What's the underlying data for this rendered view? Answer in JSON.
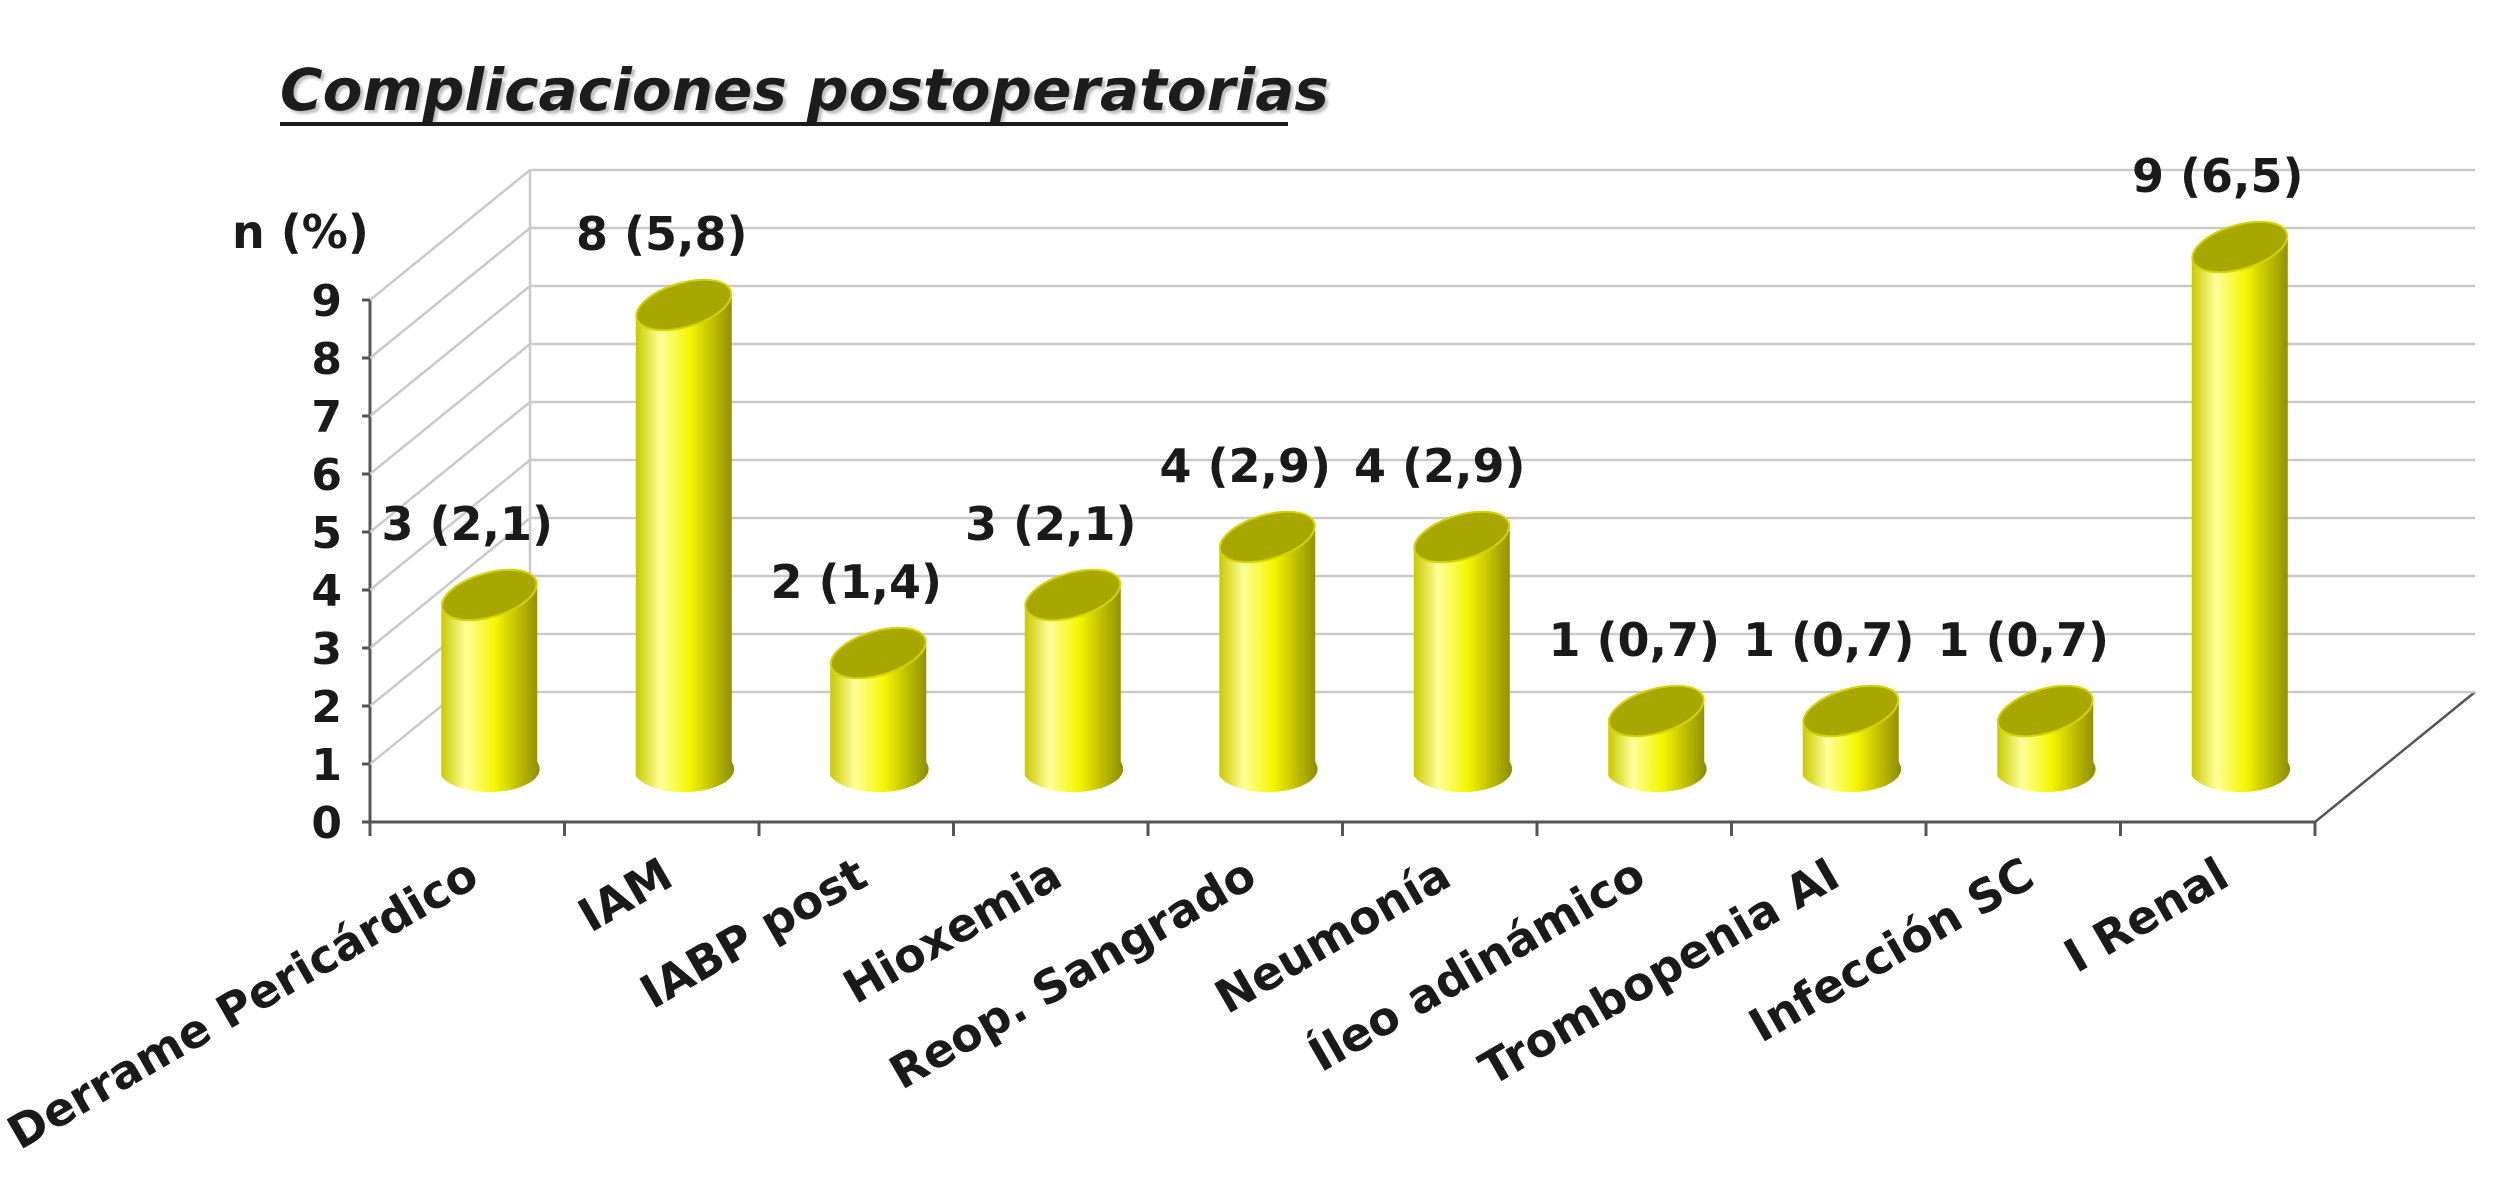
{
  "chart_data": {
    "type": "bar",
    "title": "Complicaciones postoperatorias",
    "ylabel": "n (%)",
    "xlabel": "",
    "ylim": [
      0,
      9
    ],
    "yticks": [
      "0",
      "1",
      "2",
      "3",
      "4",
      "5",
      "6",
      "7",
      "8",
      "9"
    ],
    "grid": true,
    "categories": [
      "Derrame Pericárdico",
      "IAM",
      "IABP post",
      "Hioxemia",
      "Reop. Sangrado",
      "Neumonía",
      "Íleo adinámico",
      "Trombopenia AI",
      "Infección SC",
      "I Renal"
    ],
    "series": [
      {
        "values": [
          3,
          8,
          2,
          3,
          4,
          4,
          1,
          1,
          1,
          9
        ],
        "labels": [
          "3 (2,1)",
          "8 (5,8)",
          "2 (1,4)",
          "3 (2,1)",
          "4 (2,9)",
          "4 (2,9)",
          "1 (0,7)",
          "1 (0,7)",
          "1 (0,7)",
          "9 (6,5)"
        ]
      }
    ],
    "colors": {
      "bar": "#f5f500",
      "bar_highlight": "#ffff9a",
      "bar_shadow": "#8c8c00",
      "bar_top": "#a7a700",
      "bar_top_rim": "#d4d400",
      "grid": "#c9c9c9",
      "axis": "#555555",
      "text": "#1a1a1a"
    }
  }
}
